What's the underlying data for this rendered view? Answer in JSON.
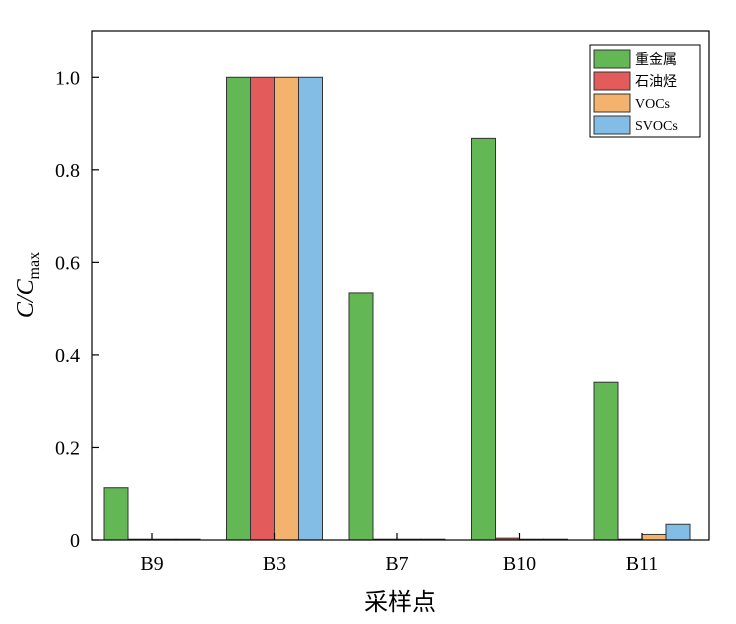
{
  "chart_data": {
    "type": "bar",
    "categories": [
      "B9",
      "B3",
      "B7",
      "B10",
      "B11"
    ],
    "series": [
      {
        "name": "重金属",
        "color": "#63b755",
        "values": [
          0.113,
          1.0,
          0.534,
          0.868,
          0.341
        ]
      },
      {
        "name": "石油烃",
        "color": "#e45b5b",
        "values": [
          0.0,
          1.0,
          0.0,
          0.004,
          0.0
        ]
      },
      {
        "name": "VOCs",
        "color": "#f3b26e",
        "values": [
          0.0,
          1.0,
          0.0,
          0.0,
          0.012
        ]
      },
      {
        "name": "SVOCs",
        "color": "#83bde6",
        "values": [
          0.0,
          1.0,
          0.0,
          0.0,
          0.034
        ]
      }
    ],
    "xlabel": "采样点",
    "ylabel": {
      "main": "C/C",
      "subscript": "max"
    },
    "ylim": [
      0,
      1.1
    ],
    "yticks": [
      0,
      0.2,
      0.4,
      0.6,
      0.8,
      1.0
    ],
    "ytick_labels": [
      "0",
      "0.2",
      "0.4",
      "0.6",
      "0.8",
      "1.0"
    ],
    "grid": false,
    "legend_position": "top-right"
  }
}
